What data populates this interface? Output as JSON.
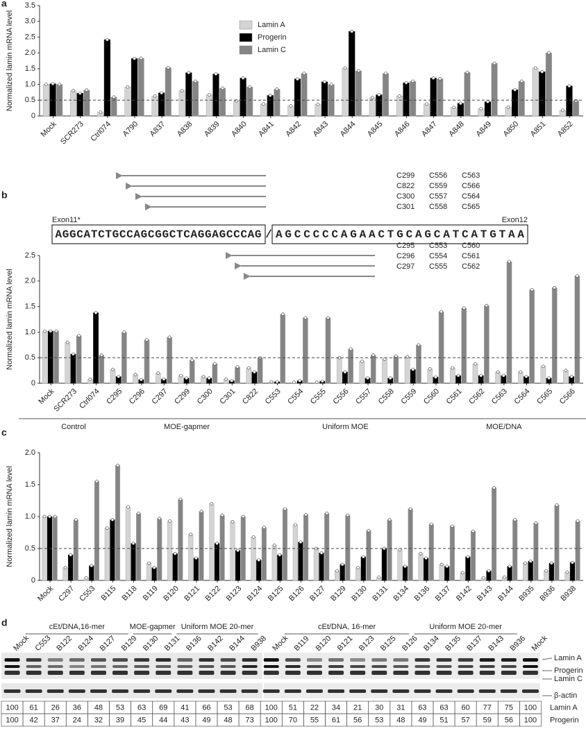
{
  "panels": [
    "a",
    "b",
    "c",
    "d"
  ],
  "chart_data": [
    {
      "type": "bar",
      "ylabel": "Normalized lamin mRNA level",
      "legend": "top",
      "reference_line": 0.5,
      "ylim": [
        0,
        3.5
      ],
      "yticks": [
        0,
        0.5,
        {
          "value": 1,
          "label": "1.0"
        },
        1.5,
        {
          "value": 2,
          "label": "2.0"
        },
        2.5,
        {
          "value": 3,
          "label": "3.0"
        },
        3.5
      ],
      "categories": [
        "Mock",
        "SCR273",
        "Ctrl074",
        "A790",
        "A837",
        "A838",
        "A839",
        "A840",
        "A841",
        "A842",
        "A843",
        "A844",
        "A845",
        "A846",
        "A847",
        "A848",
        "A849",
        "A850",
        "A851",
        "A852"
      ],
      "series": [
        {
          "name": "Lamin A",
          "color": "#d4d4d4",
          "values": [
            1.0,
            0.8,
            0.12,
            0.92,
            0.63,
            0.8,
            0.67,
            0.48,
            0.38,
            0.32,
            0.37,
            1.52,
            0.58,
            0.63,
            0.38,
            0.27,
            0.23,
            0.28,
            1.52,
            0.18
          ]
        },
        {
          "name": "Progerin",
          "color": "#000000",
          "values": [
            1.02,
            0.72,
            2.42,
            1.82,
            0.73,
            1.37,
            1.33,
            1.2,
            0.65,
            1.17,
            1.08,
            2.68,
            0.67,
            1.05,
            1.2,
            0.4,
            0.45,
            0.83,
            1.4,
            0.95
          ]
        },
        {
          "name": "Lamin C",
          "color": "#858585",
          "values": [
            1.0,
            0.82,
            0.6,
            1.83,
            1.53,
            1.1,
            0.88,
            0.92,
            0.85,
            1.35,
            1.0,
            1.43,
            1.35,
            1.1,
            1.18,
            1.38,
            1.67,
            1.1,
            2.0,
            0.48
          ]
        }
      ]
    },
    {
      "type": "bar",
      "ylabel": "Normalized lamin mRNA level",
      "reference_line": 0.5,
      "ylim": [
        0,
        2.5
      ],
      "yticks": [
        0,
        0.5,
        {
          "value": 1,
          "label": "1.0"
        },
        1.5,
        {
          "value": 2,
          "label": "2.0"
        },
        2.5
      ],
      "categories": [
        "Mock",
        "SCR273",
        "Ctrl074",
        "C295",
        "C296",
        "C297",
        "C299",
        "C300",
        "C301",
        "C822",
        "C553",
        "C554",
        "C555",
        "C556",
        "C557",
        "C558",
        "C559",
        "C560",
        "C561",
        "C562",
        "C563",
        "C564",
        "C565",
        "C566"
      ],
      "groups": [
        {
          "label": "Control",
          "span": [
            0,
            2
          ]
        },
        {
          "label": "MOE-gapmer",
          "span": [
            3,
            9
          ]
        },
        {
          "label": "Uniform MOE",
          "span": [
            10,
            16
          ]
        },
        {
          "label": "MOE/DNA",
          "span": [
            17,
            23
          ]
        }
      ],
      "series": [
        {
          "name": "Lamin A",
          "color": "#d4d4d4",
          "values": [
            1.02,
            0.8,
            0.08,
            0.27,
            0.17,
            0.2,
            0.15,
            0.13,
            0.08,
            0.3,
            0.03,
            0.02,
            0.02,
            0.5,
            0.43,
            0.47,
            0.52,
            0.28,
            0.3,
            0.38,
            0.22,
            0.22,
            0.33,
            0.25
          ]
        },
        {
          "name": "Progerin",
          "color": "#000000",
          "values": [
            1.02,
            0.57,
            1.38,
            0.13,
            0.07,
            0.08,
            0.1,
            0.1,
            0.05,
            0.22,
            0.03,
            0.05,
            0.04,
            0.22,
            0.1,
            0.1,
            0.27,
            0.12,
            0.15,
            0.15,
            0.15,
            0.13,
            0.1,
            0.13
          ]
        },
        {
          "name": "Lamin C",
          "color": "#858585",
          "values": [
            1.02,
            0.93,
            0.55,
            1.0,
            0.85,
            0.9,
            0.45,
            0.38,
            0.32,
            0.5,
            1.35,
            1.28,
            1.28,
            0.67,
            0.55,
            0.53,
            0.75,
            1.4,
            1.47,
            1.52,
            2.38,
            1.83,
            1.87,
            2.1
          ]
        }
      ]
    },
    {
      "type": "bar",
      "ylabel": "Normalized lamin mRNA level",
      "reference_line": 0.5,
      "ylim": [
        0,
        2
      ],
      "yticks": [
        0,
        0.5,
        {
          "value": 1,
          "label": "1.0"
        },
        1.5,
        {
          "value": 2,
          "label": "2.0"
        }
      ],
      "categories": [
        "Mock",
        "C297",
        "C553",
        "B115",
        "B118",
        "B119",
        "B120",
        "B121",
        "B122",
        "B123",
        "B124",
        "B125",
        "B126",
        "B127",
        "B129",
        "B130",
        "B131",
        "B134",
        "B136",
        "B137",
        "B142",
        "B143",
        "B144",
        "B935",
        "B936",
        "B938"
      ],
      "series": [
        {
          "name": "Lamin A",
          "color": "#d4d4d4",
          "values": [
            1.0,
            0.2,
            0.04,
            0.82,
            1.15,
            0.27,
            0.93,
            0.72,
            1.2,
            0.92,
            0.68,
            0.55,
            0.87,
            0.5,
            0.15,
            0.2,
            0.05,
            0.48,
            0.42,
            0.25,
            0.12,
            0.04,
            0.05,
            0.27,
            0.15,
            0.13
          ]
        },
        {
          "name": "Progerin",
          "color": "#000000",
          "values": [
            1.0,
            0.4,
            0.23,
            0.95,
            0.58,
            0.2,
            0.42,
            0.35,
            0.58,
            0.47,
            0.32,
            0.4,
            0.6,
            0.43,
            0.25,
            0.37,
            0.5,
            0.22,
            0.35,
            0.22,
            0.37,
            0.15,
            0.22,
            0.3,
            0.27,
            0.28
          ]
        },
        {
          "name": "Lamin C",
          "color": "#858585",
          "values": [
            1.0,
            0.95,
            1.55,
            1.8,
            1.05,
            0.97,
            1.27,
            1.08,
            1.02,
            1.0,
            0.83,
            1.12,
            1.03,
            1.05,
            1.02,
            0.78,
            0.95,
            1.12,
            0.88,
            0.85,
            0.77,
            1.45,
            0.95,
            0.9,
            1.18,
            0.93
          ]
        }
      ]
    }
  ],
  "sequence": {
    "exon_left": "Exon11*",
    "exon_right": "Exon12",
    "seq_left": "AGGCATCTGCCAGCGGCTCAGGAGCCCAG",
    "junction": "/",
    "seq_right": "AGCCCCCAGAACTGCAGCATCATGTAA",
    "arrows_top": [
      [
        "C299",
        "C556",
        "C563"
      ],
      [
        "C822",
        "C559",
        "C566"
      ],
      [
        "C300",
        "C557",
        "C564"
      ],
      [
        "C301",
        "C558",
        "C565"
      ]
    ],
    "arrows_bottom": [
      [
        "C295",
        "C553",
        "C560"
      ],
      [
        "C296",
        "C554",
        "C561"
      ],
      [
        "C297",
        "C555",
        "C562"
      ]
    ]
  },
  "blot": {
    "lanes": [
      "Mock",
      "C553",
      "B122",
      "B124",
      "B127",
      "B129",
      "B130",
      "B131",
      "B136",
      "B142",
      "B144",
      "B938",
      "Mock",
      "B119",
      "B120",
      "B121",
      "B123",
      "B125",
      "B126",
      "B134",
      "B135",
      "B137",
      "B143",
      "B936",
      "Mock"
    ],
    "group_headers": [
      {
        "label": "cEt/DNA,16-mer",
        "span": [
          1,
          5
        ]
      },
      {
        "label": "MOE-gapmer",
        "span": [
          6,
          7
        ]
      },
      {
        "label": "Uniform MOE 20-mer",
        "span": [
          8,
          11
        ]
      },
      {
        "label": "cEt/DNA, 16-mer",
        "span": [
          13,
          18
        ]
      },
      {
        "label": "Uniform MOE 20-mer",
        "span": [
          19,
          23
        ]
      }
    ],
    "bands": [
      "Lamin A",
      "Progerin",
      "Lamin C",
      "β-actin"
    ],
    "table": {
      "row_labels": [
        "Lamin A",
        "Progerin"
      ],
      "rows": [
        [
          100,
          61,
          26,
          36,
          48,
          53,
          63,
          69,
          41,
          66,
          53,
          68,
          100,
          51,
          22,
          34,
          21,
          30,
          31,
          63,
          63,
          60,
          77,
          75,
          100
        ],
        [
          100,
          42,
          37,
          24,
          32,
          39,
          45,
          44,
          43,
          49,
          48,
          73,
          100,
          70,
          55,
          61,
          56,
          53,
          48,
          49,
          51,
          57,
          59,
          56,
          100
        ]
      ]
    }
  }
}
